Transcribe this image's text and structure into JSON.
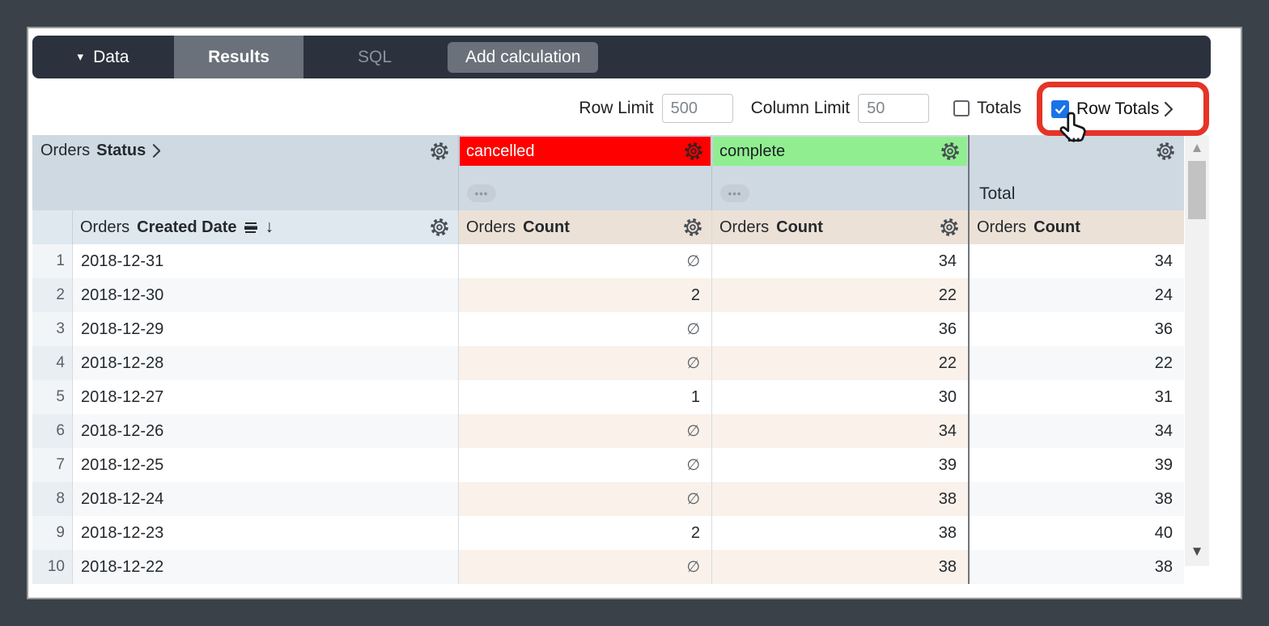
{
  "toolbar": {
    "data_label": "Data",
    "results_label": "Results",
    "sql_label": "SQL",
    "add_calculation_label": "Add calculation"
  },
  "controls": {
    "row_limit_label": "Row Limit",
    "row_limit_value": "500",
    "column_limit_label": "Column Limit",
    "column_limit_value": "50",
    "totals_label": "Totals",
    "totals_checked": false,
    "row_totals_label": "Row Totals",
    "row_totals_checked": true
  },
  "table": {
    "pivot": {
      "dimension_prefix": "Orders",
      "dimension_name": "Status",
      "values": [
        {
          "label": "cancelled",
          "color": "#fe0000",
          "text_color": "#ffffff"
        },
        {
          "label": "complete",
          "color": "#90ee90",
          "text_color": "#1b1f23"
        }
      ],
      "total_label": "Total",
      "ellipsis_label": "•••"
    },
    "row_field": {
      "prefix": "Orders",
      "name": "Created Date"
    },
    "measure": {
      "prefix": "Orders",
      "name": "Count"
    },
    "null_symbol": "∅",
    "rows": [
      {
        "n": "1",
        "date": "2018-12-31",
        "cancelled": "∅",
        "complete": "34",
        "total": "34"
      },
      {
        "n": "2",
        "date": "2018-12-30",
        "cancelled": "2",
        "complete": "22",
        "total": "24"
      },
      {
        "n": "3",
        "date": "2018-12-29",
        "cancelled": "∅",
        "complete": "36",
        "total": "36"
      },
      {
        "n": "4",
        "date": "2018-12-28",
        "cancelled": "∅",
        "complete": "22",
        "total": "22"
      },
      {
        "n": "5",
        "date": "2018-12-27",
        "cancelled": "1",
        "complete": "30",
        "total": "31"
      },
      {
        "n": "6",
        "date": "2018-12-26",
        "cancelled": "∅",
        "complete": "34",
        "total": "34"
      },
      {
        "n": "7",
        "date": "2018-12-25",
        "cancelled": "∅",
        "complete": "39",
        "total": "39"
      },
      {
        "n": "8",
        "date": "2018-12-24",
        "cancelled": "∅",
        "complete": "38",
        "total": "38"
      },
      {
        "n": "9",
        "date": "2018-12-23",
        "cancelled": "2",
        "complete": "38",
        "total": "40"
      },
      {
        "n": "10",
        "date": "2018-12-22",
        "cancelled": "∅",
        "complete": "38",
        "total": "38"
      }
    ]
  },
  "colors": {
    "frame": "#3b4148",
    "topbar": "#2b323e",
    "active_tab": "#6a717b",
    "pivot_header_bg": "#cfd9e2",
    "measure_header_bg": "#ece1d6",
    "row_header_bg": "#dfe8ef",
    "stripe_measure": "#f9f1ea",
    "stripe_dim": "#f6f8fa",
    "cancelled_bg": "#fe0000",
    "complete_bg": "#90ee90",
    "checkbox_blue": "#1a73e8",
    "annotation_red": "#e53427"
  }
}
